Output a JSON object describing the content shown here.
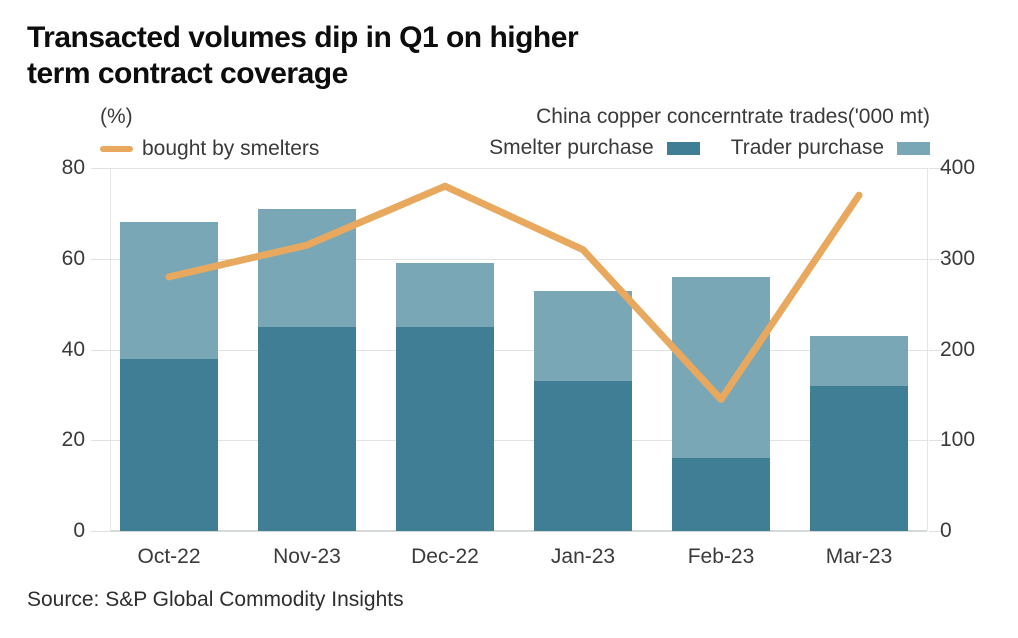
{
  "title": {
    "line1": "Transacted volumes dip in Q1 on higher",
    "line2": "term contract coverage"
  },
  "legend_left": {
    "unit": "(%)",
    "series_label": "bought by smelters"
  },
  "legend_right": {
    "axis_title": "China copper concerntrate trades('000 mt)",
    "items": [
      {
        "label": "Smelter purchase",
        "color": "#3f7e94"
      },
      {
        "label": "Trader purchase",
        "color": "#79a7b6"
      }
    ]
  },
  "source": "Source: S&P Global Commodity Insights",
  "colors": {
    "smelter_bar": "#3f7e94",
    "trader_bar": "#79a7b6",
    "line": "#e8a95e",
    "gridline": "#e3e3e3"
  },
  "chart_data": {
    "type": "bar",
    "subtype": "stacked-bars-with-line",
    "categories": [
      "Oct-22",
      "Nov-23",
      "Dec-22",
      "Jan-23",
      "Feb-23",
      "Mar-23"
    ],
    "series": [
      {
        "name": "Smelter purchase",
        "type": "bar",
        "axis": "right",
        "unit": "'000 mt",
        "color": "#3f7e94",
        "values": [
          190,
          225,
          225,
          165,
          80,
          160
        ]
      },
      {
        "name": "Trader purchase",
        "type": "bar",
        "axis": "right",
        "unit": "'000 mt",
        "color": "#79a7b6",
        "values": [
          150,
          130,
          70,
          100,
          200,
          55
        ]
      },
      {
        "name": "bought by smelters",
        "type": "line",
        "axis": "left",
        "unit": "%",
        "color": "#e8a95e",
        "values": [
          56,
          63,
          76,
          62,
          29,
          74
        ]
      }
    ],
    "stacked_totals_000mt": [
      340,
      355,
      295,
      265,
      280,
      215
    ],
    "title": "China copper concerntrate trades('000 mt)",
    "xlabel": "",
    "ylabel_left": "(%)",
    "ylabel_right": "'000 mt",
    "left_axis": {
      "ticks": [
        0,
        20,
        40,
        60,
        80
      ],
      "range": [
        0,
        80
      ]
    },
    "right_axis": {
      "ticks": [
        0,
        100,
        200,
        300,
        400
      ],
      "range": [
        0,
        400
      ]
    },
    "grid": "horizontal",
    "legend_position": "top"
  }
}
